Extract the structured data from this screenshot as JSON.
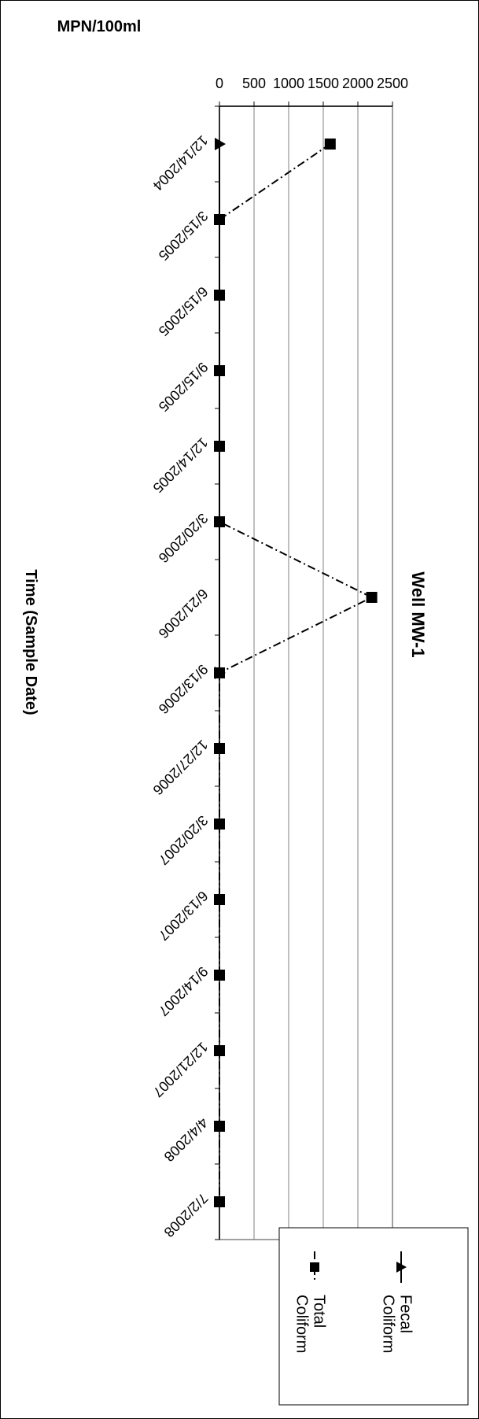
{
  "chart_data": {
    "type": "line",
    "title": "Well MW-1",
    "xlabel": "Time (Sample Date)",
    "ylabel": "MPN/100ml",
    "ylim": [
      0,
      2500
    ],
    "y_ticks": [
      0,
      500,
      1000,
      1500,
      2000,
      2500
    ],
    "grid": true,
    "legend_position": "top-right",
    "categories": [
      "12/14/2004",
      "3/15/2005",
      "6/15/2005",
      "9/15/2005",
      "12/14/2005",
      "3/20/2006",
      "6/21/2006",
      "9/13/2006",
      "12/27/2006",
      "3/20/2007",
      "6/13/2007",
      "9/14/2007",
      "12/21/2007",
      "4/4/2008",
      "7/2/2008"
    ],
    "series": [
      {
        "name": "Fecal Coliform",
        "marker": "triangle",
        "line": "solid",
        "values": [
          0,
          null,
          null,
          null,
          null,
          null,
          null,
          0,
          null,
          null,
          null,
          null,
          null,
          null,
          null
        ]
      },
      {
        "name": "Total Coliform",
        "marker": "square",
        "line": "dash-dot",
        "values": [
          1600,
          0,
          0,
          0,
          0,
          0,
          2200,
          0,
          0,
          0,
          0,
          0,
          0,
          0,
          0
        ]
      }
    ]
  }
}
